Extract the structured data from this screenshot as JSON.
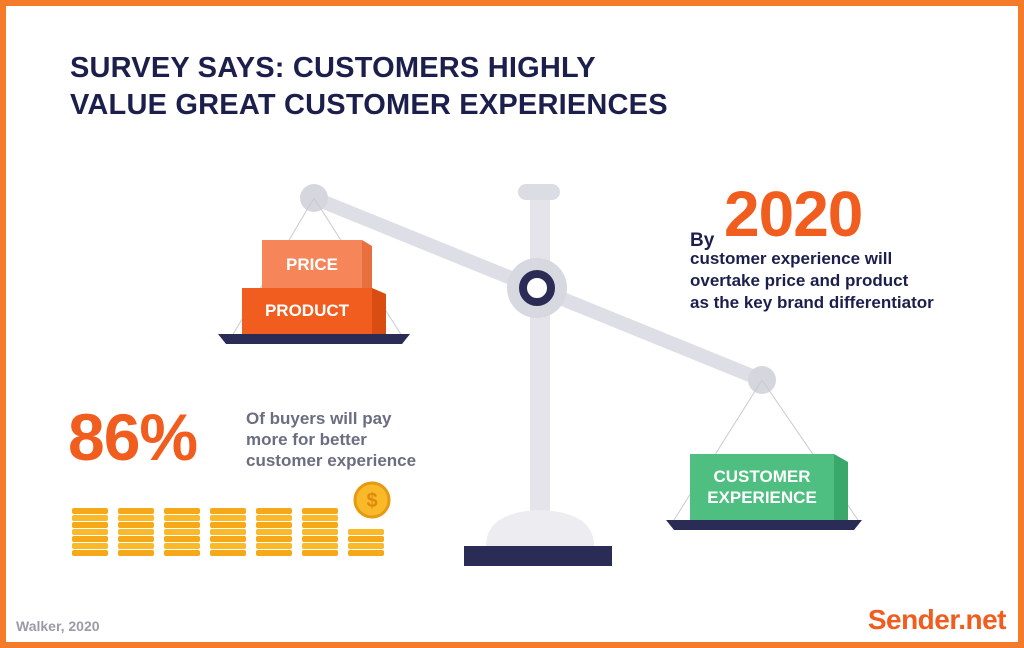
{
  "title": {
    "line1": "SURVEY SAYS: CUSTOMERS HIGHLY",
    "line2": "VALUE GREAT CUSTOMER EXPERIENCES"
  },
  "left_pan": {
    "box_top": "PRICE",
    "box_bottom": "PRODUCT"
  },
  "right_pan": {
    "box_line1": "CUSTOMER",
    "box_line2": "EXPERIENCE"
  },
  "stat_2020": {
    "prefix": "By",
    "year": "2020",
    "line1": "customer experience will",
    "line2": "overtake price and product",
    "line3": "as the key brand differentiator"
  },
  "stat_86": {
    "value": "86%",
    "line1": "Of buyers will pay",
    "line2": "more for better",
    "line3": "customer experience"
  },
  "coins": {
    "stacks": 7,
    "symbol": "$"
  },
  "source": "Walker, 2020",
  "brand": "Sender.net",
  "colors": {
    "frame": "#f47b2a",
    "title": "#1c1f4c",
    "accent": "#f05d1e",
    "price_box": "#f6865a",
    "product_box": "#f05d1e",
    "cx_box": "#4fbf81",
    "coin": "#f9b929",
    "scale_gray": "#dcdce4"
  }
}
